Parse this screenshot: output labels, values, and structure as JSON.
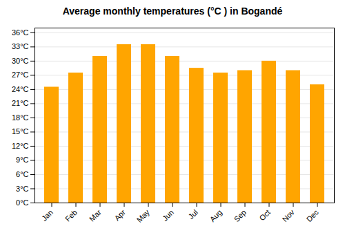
{
  "chart_data": {
    "type": "bar",
    "title": "Average monthly temperatures (°C ) in Bogandé",
    "categories": [
      "Jan",
      "Feb",
      "Mar",
      "Apr",
      "May",
      "Jun",
      "Jul",
      "Aug",
      "Sep",
      "Oct",
      "Nov",
      "Dec"
    ],
    "values": [
      24.5,
      27.5,
      31.0,
      33.5,
      33.5,
      31.0,
      28.5,
      27.5,
      28.0,
      30.0,
      28.0,
      25.0
    ],
    "color": "#FFA500",
    "ylim": [
      0,
      37
    ],
    "yticks": [
      {
        "value": 0,
        "label": "0°C"
      },
      {
        "value": 3,
        "label": "3°C"
      },
      {
        "value": 6,
        "label": "6°C"
      },
      {
        "value": 9,
        "label": "9°C"
      },
      {
        "value": 12,
        "label": "12°C"
      },
      {
        "value": 15,
        "label": "15°C"
      },
      {
        "value": 18,
        "label": "18°C"
      },
      {
        "value": 21,
        "label": "21°C"
      },
      {
        "value": 24,
        "label": "24°C"
      },
      {
        "value": 27,
        "label": "27°C"
      },
      {
        "value": 30,
        "label": "30°C"
      },
      {
        "value": 33,
        "label": "33°C"
      },
      {
        "value": 36,
        "label": "36°C"
      }
    ],
    "grid": true
  }
}
